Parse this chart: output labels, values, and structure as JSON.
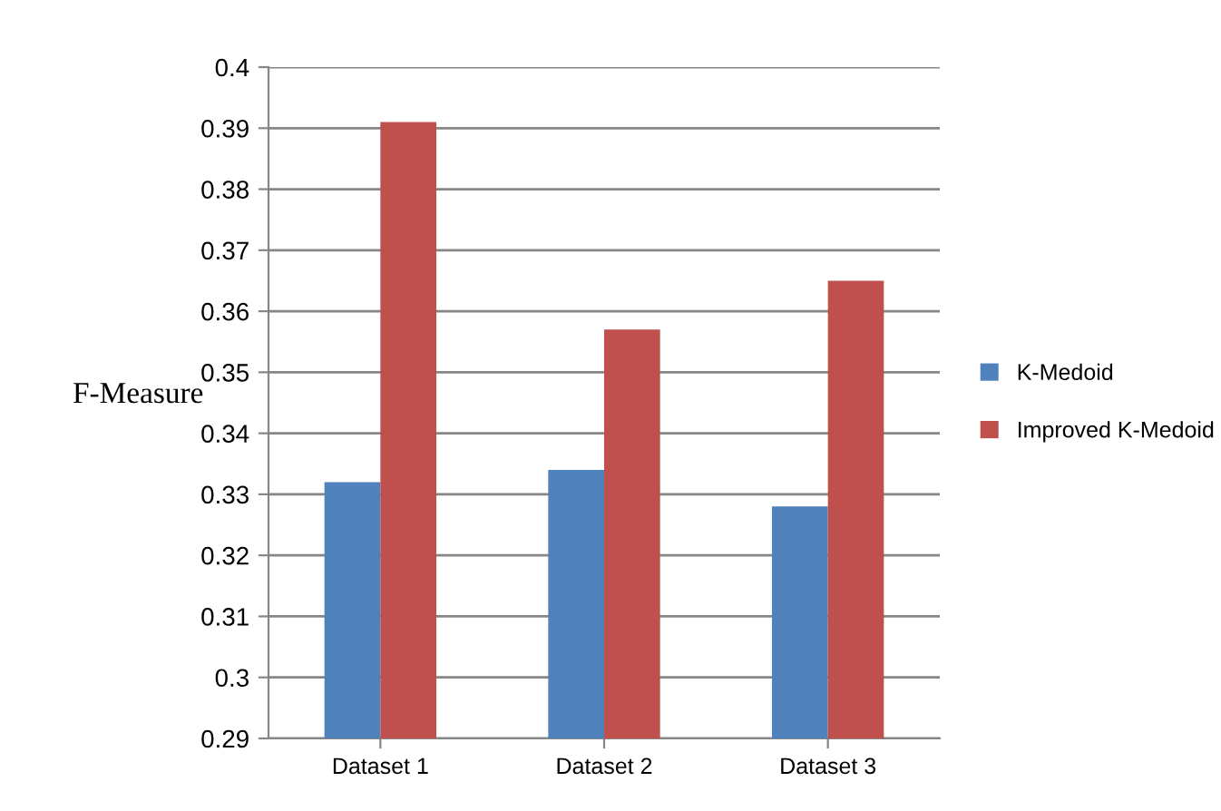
{
  "chart_data": {
    "type": "bar",
    "ylabel": "F-Measure",
    "categories": [
      "Dataset 1",
      "Dataset 2",
      "Dataset 3"
    ],
    "series": [
      {
        "name": "K-Medoid",
        "color": "#4f81bd",
        "values": [
          0.332,
          0.334,
          0.328
        ]
      },
      {
        "name": "Improved K-Medoid",
        "color": "#c0504d",
        "values": [
          0.391,
          0.357,
          0.365
        ]
      }
    ],
    "ylim": [
      0.29,
      0.4
    ],
    "yticks": [
      0.29,
      0.3,
      0.31,
      0.32,
      0.33,
      0.34,
      0.35,
      0.36,
      0.37,
      0.38,
      0.39,
      0.4
    ],
    "grid": "y",
    "legend": "right"
  }
}
